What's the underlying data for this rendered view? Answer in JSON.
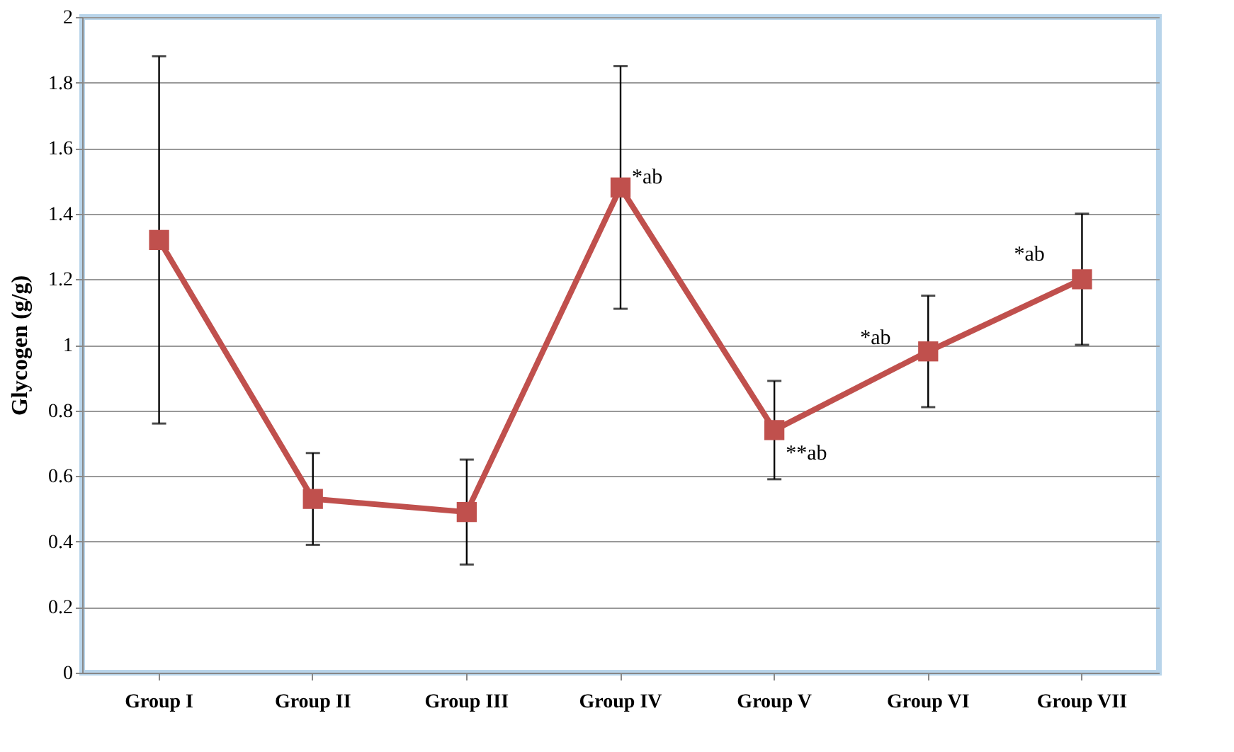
{
  "chart_data": {
    "type": "line",
    "ylabel": "Glycogen (g/g)",
    "categories": [
      "Group I",
      "Group II",
      "Group III",
      "Group IV",
      "Group V",
      "Group VI",
      "Group VII"
    ],
    "series": [
      {
        "color": "#c0504d",
        "values": [
          1.32,
          0.53,
          0.49,
          1.48,
          0.74,
          0.98,
          1.2
        ],
        "errors": [
          0.56,
          0.14,
          0.16,
          0.37,
          0.15,
          0.17,
          0.2
        ]
      }
    ],
    "ylim": [
      0,
      2
    ],
    "yticks": [
      0,
      0.2,
      0.4,
      0.6,
      0.8,
      1,
      1.2,
      1.4,
      1.6,
      1.8,
      2
    ],
    "grid": "y",
    "marker": "square",
    "line_style": "solid",
    "annotations": [
      {
        "text": "*ab",
        "x": "Group IV",
        "y": 1.48
      },
      {
        "text": "**ab",
        "x": "Group V",
        "y": 0.74
      },
      {
        "text": "*ab",
        "x": "Group VI",
        "y": 0.98
      },
      {
        "text": "*ab",
        "x": "Group VII",
        "y": 1.2
      }
    ]
  }
}
